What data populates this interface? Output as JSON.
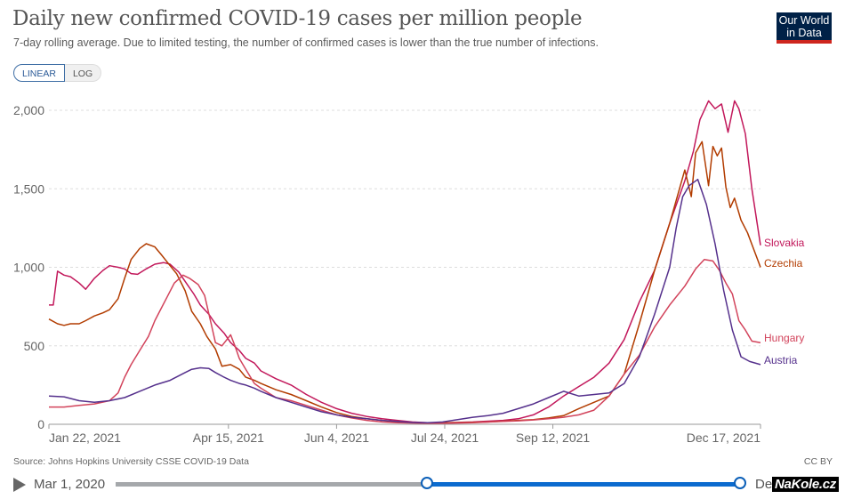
{
  "header": {
    "title": "Daily new confirmed COVID-19 cases per million people",
    "subtitle": "7-day rolling average. Due to limited testing, the number of confirmed cases is lower than the true number of infections.",
    "logo_line1": "Our World",
    "logo_line2": "in Data"
  },
  "scale_toggle": {
    "linear_label": "LINEAR",
    "log_label": "LOG",
    "selected": "LINEAR"
  },
  "footer": {
    "source": "Source: Johns Hopkins University CSSE COVID-19 Data",
    "license": "CC BY"
  },
  "timeline": {
    "start_label": "Mar 1, 2020",
    "end_label": "Dec 17, 2021",
    "range_start_fraction": 0.499,
    "range_end_fraction": 1.0
  },
  "watermark": "NaKole.cz",
  "colors": {
    "Slovakia": "#c2185b",
    "Czechia": "#b23c00",
    "Hungary": "#d2435b",
    "Austria": "#55308c",
    "grid": "#dddddd",
    "axis": "#999999"
  },
  "chart_data": {
    "type": "line",
    "title": "Daily new confirmed COVID-19 cases per million people",
    "xlabel": "",
    "ylabel": "",
    "x_unit": "days since Jan 22, 2021",
    "x_range": [
      0,
      329
    ],
    "ylim": [
      0,
      2000
    ],
    "yticks": [
      0,
      500,
      1000,
      1500,
      2000
    ],
    "ytick_labels": [
      "0",
      "500",
      "1,000",
      "1,500",
      "2,000"
    ],
    "xticks": [
      0,
      83,
      133,
      183,
      233,
      329
    ],
    "xtick_labels": [
      "Jan 22, 2021",
      "Apr 15, 2021",
      "Jun 4, 2021",
      "Jul 24, 2021",
      "Sep 12, 2021",
      "Dec 17, 2021"
    ],
    "grid": true,
    "legend": "inline-right",
    "series": [
      {
        "name": "Slovakia",
        "x": [
          0,
          2,
          4,
          7,
          10,
          14,
          17,
          21,
          25,
          28,
          32,
          35,
          38,
          41,
          45,
          49,
          53,
          56,
          60,
          64,
          67,
          70,
          74,
          77,
          81,
          84,
          88,
          91,
          95,
          98,
          105,
          112,
          119,
          126,
          133,
          140,
          147,
          154,
          161,
          168,
          175,
          182,
          189,
          196,
          203,
          210,
          217,
          224,
          231,
          238,
          245,
          252,
          259,
          266,
          273,
          280,
          287,
          294,
          298,
          301,
          305,
          308,
          311,
          314,
          317,
          319,
          322,
          325,
          329
        ],
        "values": [
          760,
          760,
          975,
          950,
          940,
          900,
          860,
          930,
          980,
          1010,
          1000,
          990,
          960,
          955,
          990,
          1020,
          1030,
          1020,
          970,
          890,
          830,
          760,
          700,
          640,
          580,
          520,
          470,
          420,
          390,
          340,
          290,
          250,
          190,
          140,
          100,
          70,
          50,
          35,
          25,
          15,
          10,
          10,
          12,
          15,
          20,
          25,
          35,
          60,
          110,
          180,
          240,
          300,
          390,
          540,
          780,
          980,
          1280,
          1550,
          1740,
          1940,
          2060,
          2010,
          2040,
          1860,
          2060,
          2010,
          1850,
          1500,
          1140
        ]
      },
      {
        "name": "Czechia",
        "x": [
          0,
          4,
          7,
          10,
          14,
          17,
          21,
          25,
          28,
          32,
          35,
          38,
          42,
          45,
          49,
          52,
          56,
          59,
          63,
          66,
          70,
          73,
          77,
          80,
          84,
          88,
          91,
          95,
          98,
          105,
          112,
          119,
          126,
          133,
          140,
          147,
          154,
          161,
          168,
          175,
          182,
          189,
          196,
          203,
          210,
          217,
          224,
          231,
          238,
          245,
          252,
          259,
          266,
          273,
          280,
          287,
          294,
          297,
          299,
          302,
          305,
          307,
          309,
          311,
          313,
          315,
          317,
          320,
          323,
          329
        ],
        "values": [
          670,
          640,
          630,
          640,
          640,
          660,
          690,
          710,
          730,
          800,
          930,
          1050,
          1120,
          1150,
          1130,
          1080,
          1010,
          960,
          850,
          720,
          640,
          560,
          480,
          370,
          380,
          350,
          300,
          280,
          260,
          220,
          190,
          150,
          110,
          75,
          50,
          35,
          25,
          15,
          10,
          8,
          10,
          10,
          12,
          15,
          20,
          25,
          30,
          40,
          55,
          100,
          140,
          180,
          320,
          640,
          980,
          1280,
          1620,
          1450,
          1730,
          1800,
          1520,
          1770,
          1710,
          1760,
          1510,
          1380,
          1440,
          1300,
          1220,
          1000
        ]
      },
      {
        "name": "Hungary",
        "x": [
          0,
          7,
          14,
          21,
          28,
          32,
          35,
          38,
          42,
          46,
          49,
          52,
          55,
          58,
          62,
          65,
          69,
          72,
          75,
          77,
          80,
          84,
          86,
          88,
          91,
          95,
          98,
          105,
          112,
          119,
          126,
          133,
          140,
          147,
          154,
          161,
          168,
          175,
          182,
          189,
          196,
          203,
          210,
          217,
          224,
          231,
          238,
          245,
          252,
          259,
          266,
          273,
          280,
          287,
          294,
          299,
          303,
          307,
          310,
          313,
          316,
          319,
          322,
          325,
          329
        ],
        "values": [
          110,
          110,
          120,
          130,
          150,
          200,
          300,
          380,
          470,
          560,
          660,
          740,
          820,
          900,
          950,
          930,
          890,
          820,
          640,
          520,
          500,
          570,
          500,
          420,
          350,
          260,
          230,
          170,
          150,
          120,
          90,
          60,
          40,
          25,
          15,
          10,
          8,
          6,
          6,
          8,
          10,
          14,
          18,
          22,
          28,
          35,
          45,
          60,
          90,
          180,
          320,
          440,
          620,
          760,
          880,
          990,
          1050,
          1040,
          980,
          900,
          830,
          660,
          600,
          530,
          520
        ]
      },
      {
        "name": "Austria",
        "x": [
          0,
          7,
          14,
          21,
          28,
          35,
          42,
          49,
          56,
          63,
          66,
          70,
          74,
          77,
          81,
          84,
          88,
          91,
          95,
          98,
          105,
          112,
          119,
          126,
          133,
          140,
          147,
          154,
          161,
          168,
          175,
          182,
          189,
          196,
          203,
          210,
          217,
          224,
          231,
          238,
          245,
          252,
          259,
          266,
          273,
          280,
          287,
          290,
          293,
          296,
          300,
          304,
          308,
          312,
          316,
          320,
          324,
          329
        ],
        "values": [
          180,
          175,
          150,
          140,
          150,
          170,
          210,
          250,
          280,
          330,
          350,
          360,
          355,
          330,
          300,
          280,
          260,
          250,
          230,
          210,
          170,
          140,
          110,
          80,
          60,
          45,
          35,
          25,
          18,
          12,
          10,
          15,
          30,
          45,
          55,
          70,
          100,
          130,
          170,
          210,
          180,
          190,
          200,
          260,
          430,
          700,
          1000,
          1250,
          1450,
          1520,
          1560,
          1400,
          1150,
          850,
          600,
          430,
          400,
          380
        ]
      }
    ]
  }
}
